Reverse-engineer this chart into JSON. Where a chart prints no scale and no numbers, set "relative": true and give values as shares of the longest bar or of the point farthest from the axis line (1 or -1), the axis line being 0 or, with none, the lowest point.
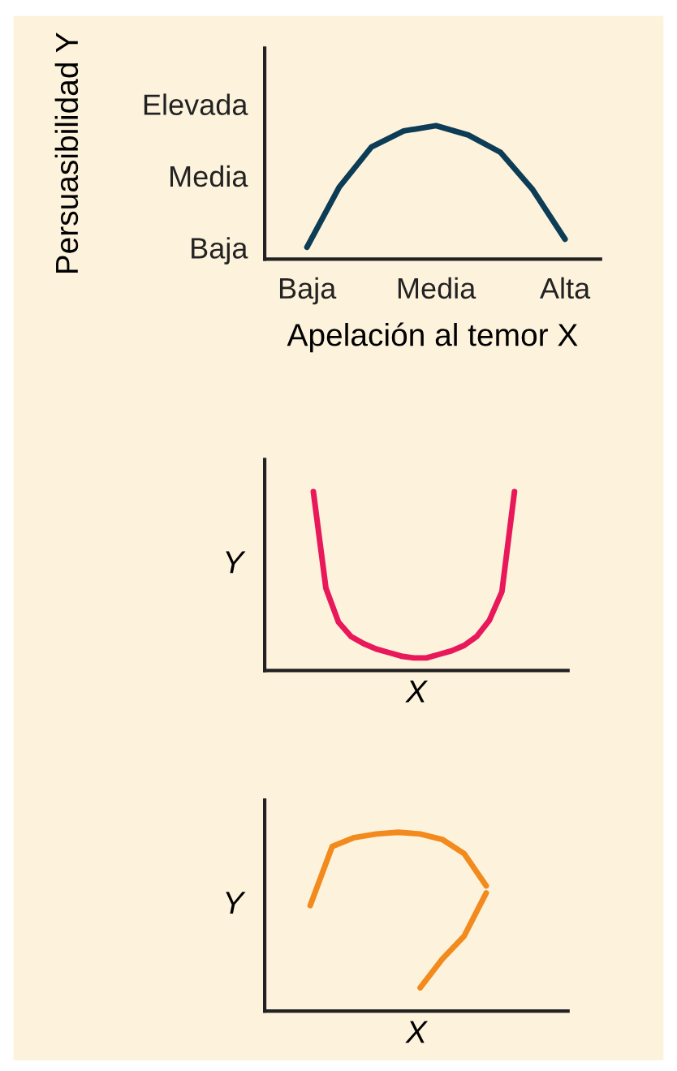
{
  "chart_data": [
    {
      "type": "line",
      "relative": true,
      "xlabel": "Apelación al temor X",
      "ylabel": "Persuasibilidad Y",
      "annotations": [
        "Baja",
        "Media",
        "Elevada"
      ],
      "categories": [
        "Baja",
        null,
        null,
        null,
        "Media",
        null,
        null,
        null,
        "Alta"
      ],
      "series": [
        {
          "color": "#0d3d56",
          "values": [
            0.09,
            0.54,
            0.84,
            0.96,
            1.0,
            0.93,
            0.8,
            0.52,
            0.15
          ]
        }
      ]
    },
    {
      "type": "line",
      "relative": true,
      "xlabel": "X",
      "ylabel": "Y",
      "categories": [
        null,
        null,
        null,
        null,
        null,
        null,
        null,
        null,
        null,
        null,
        null,
        null,
        null,
        null,
        null,
        null,
        null
      ],
      "series": [
        {
          "color": "#e8185a",
          "values": [
            1.0,
            0.46,
            0.27,
            0.19,
            0.15,
            0.12,
            0.1,
            0.08,
            0.07,
            0.07,
            0.09,
            0.11,
            0.14,
            0.19,
            0.28,
            0.44,
            1.0
          ]
        }
      ]
    },
    {
      "type": "line",
      "relative": true,
      "xlabel": "X",
      "ylabel": "Y",
      "categories": [
        null,
        null,
        null,
        null,
        null,
        null,
        null,
        null,
        null
      ],
      "series": [
        {
          "color": "#f28a1d",
          "values": [
            0.59,
            0.92,
            0.97,
            0.99,
            1.0,
            0.99,
            0.96,
            0.88,
            0.7
          ]
        },
        {
          "color": "#f28a1d",
          "values": [
            null,
            null,
            null,
            null,
            null,
            0.13,
            0.29,
            0.42,
            0.66
          ]
        }
      ]
    }
  ]
}
